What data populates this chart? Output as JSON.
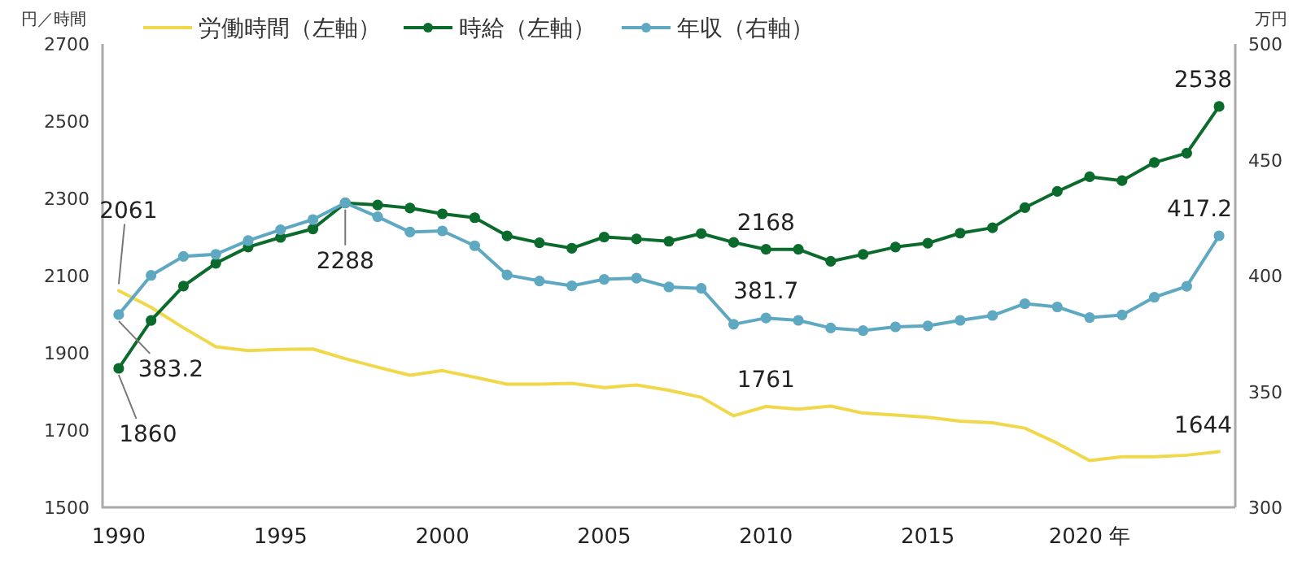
{
  "chart_data": {
    "type": "line",
    "ylabel": "円／時間",
    "y2label": "万円",
    "x": [
      1990,
      1991,
      1992,
      1993,
      1994,
      1995,
      1996,
      1997,
      1998,
      1999,
      2000,
      2001,
      2002,
      2003,
      2004,
      2005,
      2006,
      2007,
      2008,
      2009,
      2010,
      2011,
      2012,
      2013,
      2014,
      2015,
      2016,
      2017,
      2018,
      2019,
      2020,
      2021,
      2022,
      2023,
      2024
    ],
    "xlim": [
      1989.5,
      2024.5
    ],
    "xticks": [
      1990,
      1995,
      2000,
      2005,
      2010,
      2015,
      {
        "value": 2020,
        "label": "2020 年"
      }
    ],
    "ylim": [
      1500,
      2700
    ],
    "yticks": [
      1500,
      1700,
      1900,
      2100,
      2300,
      2500,
      2700
    ],
    "y2lim": [
      300,
      500
    ],
    "y2ticks": [
      300,
      350,
      400,
      450,
      500
    ],
    "grid": false,
    "legend": "top left",
    "series": [
      {
        "name": "労働時間（左軸）",
        "color": "#f0d84a",
        "marker": "none",
        "values": [
          2061,
          2018,
          1965,
          1916,
          1906,
          1909,
          1910,
          1885,
          1863,
          1842,
          1854,
          1837,
          1819,
          1819,
          1821,
          1810,
          1817,
          1803,
          1785,
          1737,
          1761,
          1754,
          1762,
          1744,
          1739,
          1733,
          1723,
          1719,
          1705,
          1666,
          1621,
          1631,
          1631,
          1635,
          1644
        ],
        "value_labels": [
          "2061",
          null,
          null,
          null,
          null,
          null,
          null,
          null,
          null,
          null,
          null,
          null,
          null,
          null,
          null,
          null,
          null,
          null,
          null,
          null,
          "1761",
          null,
          null,
          null,
          null,
          null,
          null,
          null,
          null,
          null,
          null,
          null,
          null,
          null,
          "1644"
        ]
      },
      {
        "name": "時給（左軸）",
        "color": "#0b6b2c",
        "marker": "circle",
        "values": [
          1860,
          1984,
          2073,
          2132,
          2174,
          2199,
          2221,
          2288,
          2283,
          2275,
          2260,
          2250,
          2203,
          2185,
          2171,
          2200,
          2195,
          2189,
          2209,
          2186,
          2168,
          2168,
          2137,
          2155,
          2174,
          2184,
          2210,
          2224,
          2276,
          2318,
          2356,
          2346,
          2393,
          2417,
          2538
        ],
        "value_labels": [
          "1860",
          null,
          null,
          null,
          null,
          null,
          null,
          "2288",
          null,
          null,
          null,
          null,
          null,
          null,
          null,
          null,
          null,
          null,
          null,
          null,
          "2168",
          null,
          null,
          null,
          null,
          null,
          null,
          null,
          null,
          null,
          null,
          null,
          null,
          null,
          "2538"
        ]
      },
      {
        "name": "年収（右軸）",
        "color": "#5ea8c2",
        "marker": "circle",
        "axis": "y2",
        "values": [
          383.2,
          400.1,
          408.3,
          409.2,
          415.1,
          419.8,
          424.2,
          431.4,
          425.4,
          418.8,
          419.3,
          412.9,
          400.3,
          397.7,
          395.6,
          398.4,
          398.9,
          395.1,
          394.5,
          379,
          381.7,
          380.7,
          377.4,
          376.3,
          377.9,
          378.3,
          380.7,
          382.8,
          387.9,
          386.5,
          381.9,
          383,
          390.7,
          395.4,
          417.2
        ],
        "value_labels": [
          "383.2",
          null,
          null,
          null,
          null,
          null,
          null,
          null,
          null,
          null,
          null,
          null,
          null,
          null,
          null,
          null,
          null,
          null,
          null,
          null,
          "381.7",
          null,
          null,
          null,
          null,
          null,
          null,
          null,
          null,
          null,
          null,
          null,
          null,
          null,
          "417.2"
        ]
      }
    ]
  }
}
